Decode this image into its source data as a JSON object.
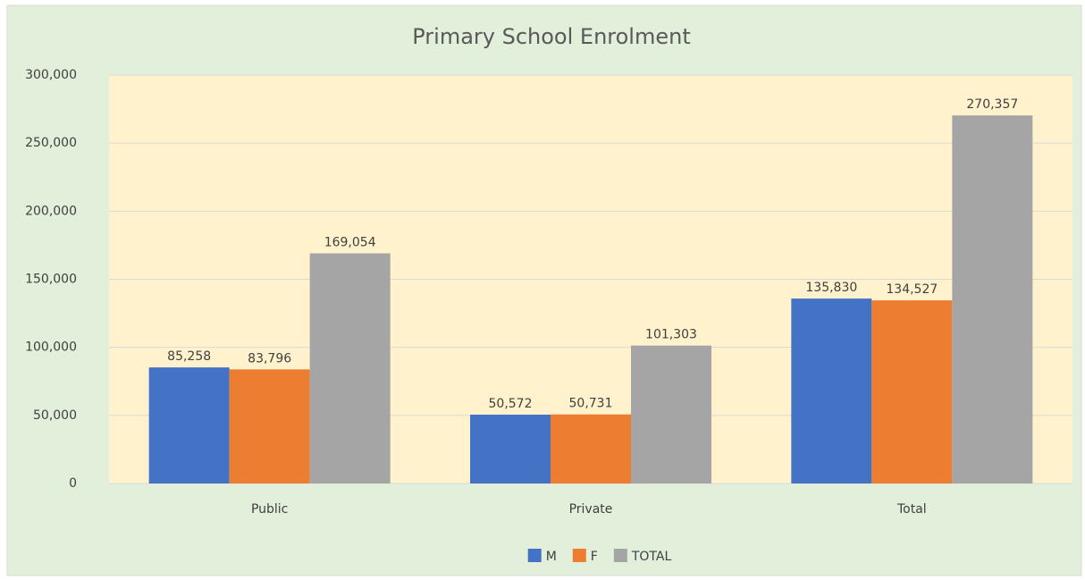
{
  "chart_data": {
    "type": "bar",
    "title": "Primary School Enrolment",
    "categories": [
      "Public",
      "Private",
      "Total"
    ],
    "series": [
      {
        "name": "M",
        "color": "#4472c4",
        "values": [
          85258,
          50572,
          135830
        ],
        "value_labels": [
          "85,258",
          "50,572",
          "135,830"
        ]
      },
      {
        "name": "F",
        "color": "#ed7d31",
        "values": [
          83796,
          50731,
          134527
        ],
        "value_labels": [
          "83,796",
          "50,731",
          "134,527"
        ]
      },
      {
        "name": "TOTAL",
        "color": "#a5a5a5",
        "values": [
          169054,
          101303,
          270357
        ],
        "value_labels": [
          "169,054",
          "101,303",
          "270,357"
        ]
      }
    ],
    "ylim": [
      0,
      300000
    ],
    "yticks": [
      0,
      {
        "value": 50000,
        "label": "50,000"
      },
      {
        "value": 100000,
        "label": "100,000"
      },
      {
        "value": 150000,
        "label": "150,000"
      },
      {
        "value": 200000,
        "label": "200,000"
      },
      {
        "value": 250000,
        "label": "250,000"
      },
      {
        "value": 300000,
        "label": "300,000"
      }
    ],
    "grid": true,
    "legend": "bottom"
  }
}
